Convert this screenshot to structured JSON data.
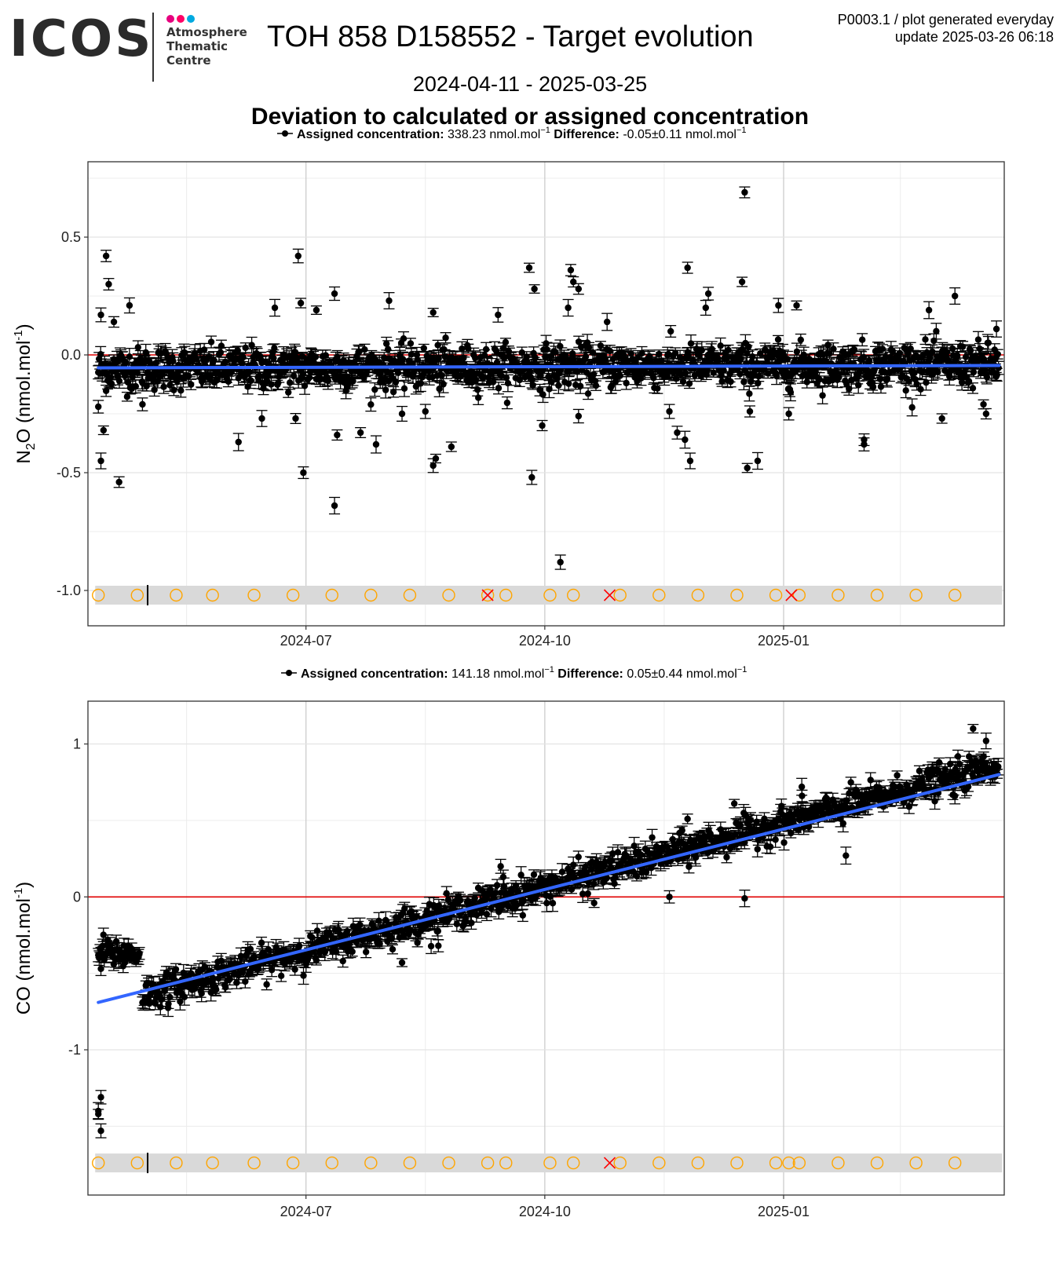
{
  "header": {
    "logo_text": "ICOS",
    "logo_sub_lines": [
      "Atmosphere",
      "Thematic",
      "Centre"
    ],
    "logo_dot_colors": [
      "#e6007e",
      "#ff0066",
      "#00a9e0"
    ],
    "title": "TOH 858 D158552 - Target evolution",
    "meta_line1": "P0003.1 / plot generated everyday",
    "meta_line2": "update  2025-03-26 06:18",
    "date_range": "2024-04-11 - 2025-03-25",
    "subtitle": "Deviation to calculated or assigned concentration"
  },
  "colors": {
    "points": "#000000",
    "trend": "#3366ff",
    "zero_line": "#e00000",
    "cal_marker": "#ffa500",
    "flag_marker": "#ff0000",
    "band": "#d9d9d9",
    "grid_major": "#c8c8c8",
    "grid_minor": "#ececec"
  },
  "chart_data": [
    {
      "type": "scatter",
      "legend": {
        "label1": "Assigned concentration:",
        "value1": "338.23 nmol.mol",
        "label2": "Difference:",
        "value2": "-0.05",
        "pm": "±",
        "value2b": "0.11 nmol.mol",
        "sup": "−1"
      },
      "ylabel_main": "N",
      "ylabel_sub": "2",
      "ylabel_rest": "O (nmol.mol",
      "ylabel_sup": "-1",
      "ylabel_close": ")",
      "xlim": [
        "2024-04-08",
        "2025-03-27"
      ],
      "ylim": [
        -1.15,
        0.82
      ],
      "yticks": [
        {
          "v": 0.5,
          "label": "0.5"
        },
        {
          "v": 0.0,
          "label": "0.0"
        },
        {
          "v": -0.5,
          "label": "-0.5"
        },
        {
          "v": -1.0,
          "label": "-1.0"
        }
      ],
      "xticks": [
        {
          "date": "2024-07-01",
          "label": "2024-07"
        },
        {
          "date": "2024-10-01",
          "label": "2024-10"
        },
        {
          "date": "2025-01-01",
          "label": "2025-01"
        }
      ],
      "minor_x": [
        "2024-05-16",
        "2024-08-16",
        "2024-11-16",
        "2025-02-15"
      ],
      "minor_y": [
        0.75,
        0.25,
        -0.25,
        -0.75
      ],
      "trend": {
        "start": [
          "2024-04-12",
          -0.055
        ],
        "end": [
          "2025-03-25",
          -0.045
        ]
      },
      "band_y": -1.02,
      "circles": [
        "2024-04-12",
        "2024-04-27",
        "2024-05-12",
        "2024-05-26",
        "2024-06-11",
        "2024-06-26",
        "2024-07-11",
        "2024-07-26",
        "2024-08-10",
        "2024-08-25",
        "2024-09-09",
        "2024-09-16",
        "2024-10-03",
        "2024-10-12",
        "2024-10-30",
        "2024-11-14",
        "2024-11-29",
        "2024-12-14",
        "2024-12-29",
        "2025-01-07",
        "2025-01-22",
        "2025-02-06",
        "2025-02-21",
        "2025-03-08"
      ],
      "crosses": [
        "2024-09-09",
        "2024-10-26",
        "2025-01-04"
      ],
      "marker_line": "2024-05-01",
      "base_start_y": -0.06,
      "base_end_y": -0.04,
      "noise_sd": 0.045,
      "outliers": [
        {
          "date": "2024-04-13",
          "y": 0.17
        },
        {
          "date": "2024-04-15",
          "y": 0.42
        },
        {
          "date": "2024-04-16",
          "y": 0.3
        },
        {
          "date": "2024-04-18",
          "y": 0.14
        },
        {
          "date": "2024-04-13",
          "y": -0.45
        },
        {
          "date": "2024-04-14",
          "y": -0.32
        },
        {
          "date": "2024-04-12",
          "y": -0.22
        },
        {
          "date": "2024-04-20",
          "y": -0.54
        },
        {
          "date": "2024-04-24",
          "y": 0.21
        },
        {
          "date": "2024-04-29",
          "y": -0.21
        },
        {
          "date": "2024-06-05",
          "y": -0.37
        },
        {
          "date": "2024-06-14",
          "y": -0.27
        },
        {
          "date": "2024-06-19",
          "y": 0.2
        },
        {
          "date": "2024-06-28",
          "y": 0.42
        },
        {
          "date": "2024-06-29",
          "y": 0.22
        },
        {
          "date": "2024-06-30",
          "y": -0.5
        },
        {
          "date": "2024-06-27",
          "y": -0.27
        },
        {
          "date": "2024-07-05",
          "y": 0.19
        },
        {
          "date": "2024-07-12",
          "y": 0.26
        },
        {
          "date": "2024-07-13",
          "y": -0.34
        },
        {
          "date": "2024-07-12",
          "y": -0.64
        },
        {
          "date": "2024-07-22",
          "y": -0.33
        },
        {
          "date": "2024-07-28",
          "y": -0.38
        },
        {
          "date": "2024-08-02",
          "y": 0.23
        },
        {
          "date": "2024-08-07",
          "y": -0.25
        },
        {
          "date": "2024-08-16",
          "y": -0.24
        },
        {
          "date": "2024-08-19",
          "y": -0.47
        },
        {
          "date": "2024-08-20",
          "y": -0.44
        },
        {
          "date": "2024-08-26",
          "y": -0.39
        },
        {
          "date": "2024-08-19",
          "y": 0.18
        },
        {
          "date": "2024-09-13",
          "y": 0.17
        },
        {
          "date": "2024-09-25",
          "y": 0.37
        },
        {
          "date": "2024-09-27",
          "y": 0.28
        },
        {
          "date": "2024-09-26",
          "y": -0.52
        },
        {
          "date": "2024-09-30",
          "y": -0.3
        },
        {
          "date": "2024-10-07",
          "y": -0.88
        },
        {
          "date": "2024-10-11",
          "y": 0.36
        },
        {
          "date": "2024-10-12",
          "y": 0.31
        },
        {
          "date": "2024-10-14",
          "y": 0.28
        },
        {
          "date": "2024-10-10",
          "y": 0.2
        },
        {
          "date": "2024-10-14",
          "y": -0.26
        },
        {
          "date": "2024-10-25",
          "y": 0.14
        },
        {
          "date": "2024-11-18",
          "y": -0.24
        },
        {
          "date": "2024-11-21",
          "y": -0.33
        },
        {
          "date": "2024-11-24",
          "y": -0.36
        },
        {
          "date": "2024-11-26",
          "y": -0.45
        },
        {
          "date": "2024-11-25",
          "y": 0.37
        },
        {
          "date": "2024-12-03",
          "y": 0.26
        },
        {
          "date": "2024-12-02",
          "y": 0.2
        },
        {
          "date": "2024-12-17",
          "y": 0.69
        },
        {
          "date": "2024-12-16",
          "y": 0.31
        },
        {
          "date": "2024-12-18",
          "y": -0.48
        },
        {
          "date": "2024-12-22",
          "y": -0.45
        },
        {
          "date": "2024-12-19",
          "y": -0.24
        },
        {
          "date": "2024-12-30",
          "y": 0.21
        },
        {
          "date": "2025-01-03",
          "y": -0.25
        },
        {
          "date": "2025-01-06",
          "y": 0.21
        },
        {
          "date": "2025-02-01",
          "y": -0.36
        },
        {
          "date": "2025-02-01",
          "y": -0.38
        },
        {
          "date": "2025-02-26",
          "y": 0.19
        },
        {
          "date": "2025-03-03",
          "y": -0.27
        },
        {
          "date": "2025-03-08",
          "y": 0.25
        },
        {
          "date": "2025-03-19",
          "y": -0.21
        },
        {
          "date": "2025-03-20",
          "y": -0.25
        },
        {
          "date": "2025-03-24",
          "y": 0.11
        }
      ]
    },
    {
      "type": "scatter",
      "legend": {
        "label1": "Assigned concentration:",
        "value1": "141.18 nmol.mol",
        "label2": "Difference:",
        "value2": "0.05",
        "pm": "±",
        "value2b": "0.44 nmol.mol",
        "sup": "−1"
      },
      "ylabel_main": "CO (nmol.mol",
      "ylabel_sup": "-1",
      "ylabel_close": ")",
      "xlim": [
        "2024-04-08",
        "2025-03-27"
      ],
      "ylim": [
        -1.95,
        1.28
      ],
      "yticks": [
        {
          "v": 1,
          "label": "1"
        },
        {
          "v": 0,
          "label": "0"
        },
        {
          "v": -1,
          "label": "-1"
        }
      ],
      "xticks": [
        {
          "date": "2024-07-01",
          "label": "2024-07"
        },
        {
          "date": "2024-10-01",
          "label": "2024-10"
        },
        {
          "date": "2025-01-01",
          "label": "2025-01"
        }
      ],
      "minor_x": [
        "2024-05-16",
        "2024-08-16",
        "2024-11-16",
        "2025-02-15"
      ],
      "minor_y": [
        0.5,
        -0.5,
        -1.5
      ],
      "trend": {
        "start": [
          "2024-04-12",
          -0.69
        ],
        "end": [
          "2025-03-25",
          0.8
        ]
      },
      "band_y": -1.74,
      "circles": [
        "2024-04-12",
        "2024-04-27",
        "2024-05-12",
        "2024-05-26",
        "2024-06-11",
        "2024-06-26",
        "2024-07-11",
        "2024-07-26",
        "2024-08-10",
        "2024-08-25",
        "2024-09-09",
        "2024-09-16",
        "2024-10-03",
        "2024-10-12",
        "2024-10-30",
        "2024-11-14",
        "2024-11-29",
        "2024-12-14",
        "2024-12-29",
        "2025-01-03",
        "2025-01-07",
        "2025-01-22",
        "2025-02-06",
        "2025-02-21",
        "2025-03-08"
      ],
      "crosses": [
        "2024-10-26"
      ],
      "marker_line": "2024-05-01",
      "segments": [
        {
          "start": "2024-04-12",
          "end": "2024-04-28",
          "y0": -0.36,
          "y1": -0.38
        },
        {
          "start": "2024-04-29",
          "end": "2025-03-25",
          "y0": -0.64,
          "y1": 0.86
        }
      ],
      "noise_sd": 0.05,
      "outliers": [
        {
          "date": "2024-04-13",
          "y": -1.31
        },
        {
          "date": "2024-04-12",
          "y": -1.4
        },
        {
          "date": "2024-04-12",
          "y": -1.42
        },
        {
          "date": "2024-04-13",
          "y": -1.53
        },
        {
          "date": "2024-04-13",
          "y": -0.47
        },
        {
          "date": "2024-05-09",
          "y": -0.7
        },
        {
          "date": "2024-08-21",
          "y": -0.32
        },
        {
          "date": "2024-09-14",
          "y": 0.2
        },
        {
          "date": "2024-09-15",
          "y": 0.13
        },
        {
          "date": "2024-11-18",
          "y": 0.0
        },
        {
          "date": "2024-11-25",
          "y": 0.51
        },
        {
          "date": "2024-12-13",
          "y": 0.61
        },
        {
          "date": "2024-12-17",
          "y": -0.01
        },
        {
          "date": "2025-01-08",
          "y": 0.72
        },
        {
          "date": "2025-01-25",
          "y": 0.27
        },
        {
          "date": "2025-03-08",
          "y": 0.66
        },
        {
          "date": "2025-03-15",
          "y": 1.1
        },
        {
          "date": "2025-03-20",
          "y": 1.02
        },
        {
          "date": "2024-08-07",
          "y": -0.43
        },
        {
          "date": "2024-10-20",
          "y": -0.04
        }
      ]
    }
  ]
}
